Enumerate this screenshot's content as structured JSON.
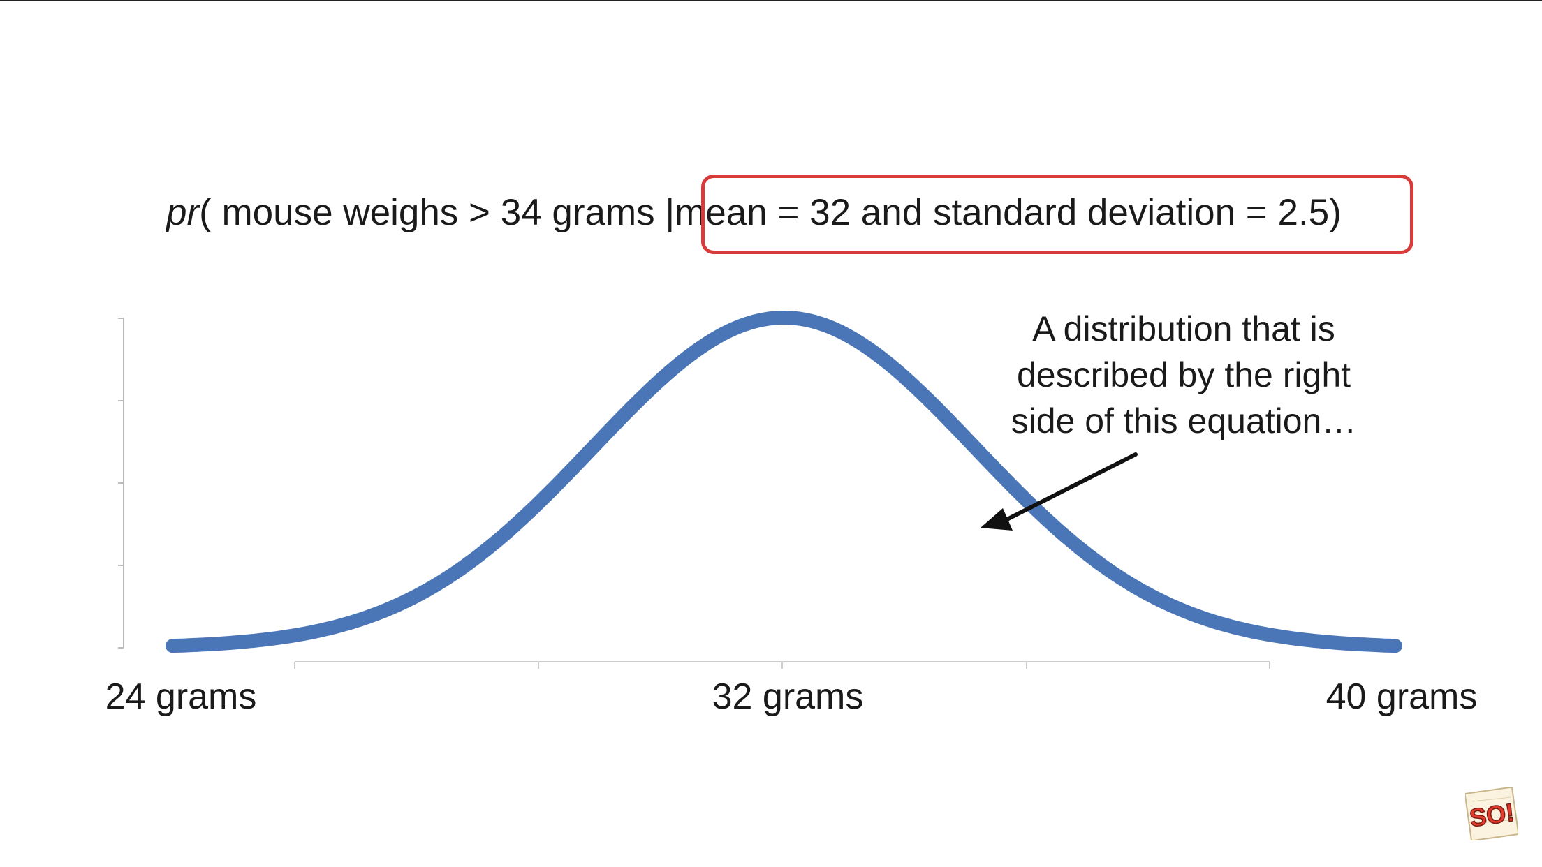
{
  "equation": {
    "pr": "pr",
    "left": "( mouse weighs > 34 grams ",
    "bar": "|",
    "right": "mean = 32 and standard deviation = 2.5)"
  },
  "annotation": {
    "line1": "A distribution that is",
    "line2": "described by the right",
    "line3": "side of this equation…"
  },
  "colors": {
    "curve": "#4a76b8",
    "highlight": "#d93a3a",
    "axis": "#bbbbbb",
    "arrow": "#111111"
  },
  "logo": {
    "text": "SO!",
    "icon": "statquest-logo-icon"
  },
  "chart_data": {
    "type": "line",
    "title": "",
    "xlabel": "",
    "ylabel": "",
    "distribution": "normal",
    "mean": 32,
    "sd": 2.5,
    "xlim": [
      24,
      40
    ],
    "x_tick_values": [
      24,
      28,
      32,
      36,
      40
    ],
    "x_tick_labels": [
      "24 grams",
      "",
      "32 grams",
      "",
      "40 grams"
    ],
    "grid": false,
    "legend": "none"
  }
}
